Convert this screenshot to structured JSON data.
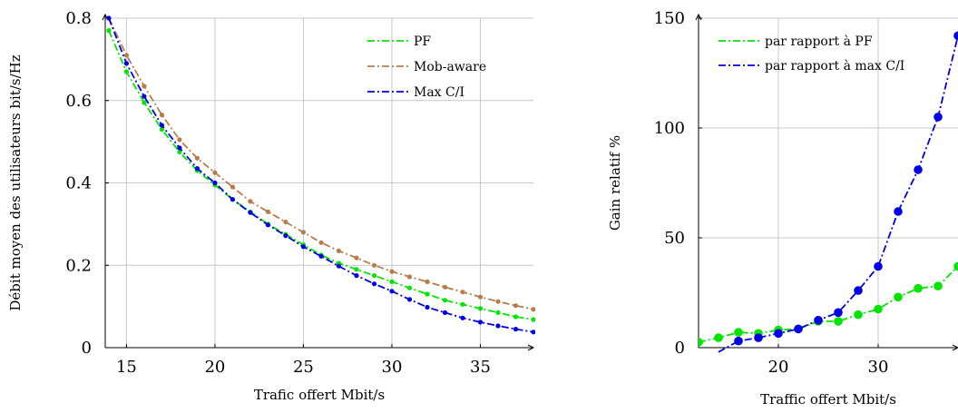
{
  "chart_data": [
    {
      "type": "line",
      "title": "",
      "xlabel": "Trafic offert Mbit/s",
      "ylabel": "Débit moyen des utilisateurs bit/s/Hz",
      "xlim": [
        13.8,
        38
      ],
      "ylim": [
        0,
        0.8
      ],
      "xticks": [
        15,
        20,
        25,
        30,
        35
      ],
      "xtick_labels": [
        "15",
        "20",
        "25",
        "30",
        "35"
      ],
      "yticks": [
        0,
        0.2,
        0.4,
        0.6,
        0.8
      ],
      "ytick_labels": [
        "0",
        "0.2",
        "0.4",
        "0.6",
        "0.8"
      ],
      "grid": true,
      "legend": "top-right",
      "series": [
        {
          "name": "PF",
          "color": "#00e600",
          "x": [
            14,
            15,
            16,
            17,
            18,
            19,
            20,
            21,
            22,
            23,
            24,
            25,
            26,
            27,
            28,
            29,
            30,
            31,
            32,
            33,
            34,
            35,
            36,
            37,
            38
          ],
          "values": [
            0.77,
            0.67,
            0.595,
            0.53,
            0.475,
            0.43,
            0.395,
            0.36,
            0.33,
            0.3,
            0.275,
            0.25,
            0.225,
            0.205,
            0.19,
            0.175,
            0.16,
            0.145,
            0.13,
            0.115,
            0.105,
            0.095,
            0.085,
            0.075,
            0.068
          ]
        },
        {
          "name": "Mob-aware",
          "color": "#b87c4c",
          "x": [
            14,
            15,
            16,
            17,
            18,
            19,
            20,
            21,
            22,
            23,
            24,
            25,
            26,
            27,
            28,
            29,
            30,
            31,
            32,
            33,
            34,
            35,
            36,
            37,
            38
          ],
          "values": [
            0.8,
            0.71,
            0.635,
            0.565,
            0.505,
            0.46,
            0.425,
            0.39,
            0.355,
            0.33,
            0.305,
            0.28,
            0.255,
            0.235,
            0.218,
            0.2,
            0.185,
            0.172,
            0.16,
            0.147,
            0.135,
            0.123,
            0.112,
            0.102,
            0.093
          ]
        },
        {
          "name": "Max C/I",
          "color": "#0000e6",
          "x": [
            14,
            15,
            16,
            17,
            18,
            19,
            20,
            21,
            22,
            23,
            24,
            25,
            26,
            27,
            28,
            29,
            30,
            31,
            32,
            33,
            34,
            35,
            36,
            37,
            38
          ],
          "values": [
            0.8,
            0.69,
            0.61,
            0.54,
            0.485,
            0.435,
            0.4,
            0.36,
            0.328,
            0.298,
            0.272,
            0.245,
            0.222,
            0.198,
            0.175,
            0.155,
            0.137,
            0.117,
            0.098,
            0.085,
            0.072,
            0.062,
            0.053,
            0.045,
            0.038
          ]
        }
      ]
    },
    {
      "type": "line",
      "title": "",
      "xlabel": "Traffic offert Mbit/s",
      "ylabel": "Gain relatif %",
      "xlim": [
        12,
        38
      ],
      "ylim": [
        0,
        150
      ],
      "xticks": [
        20,
        30
      ],
      "xtick_labels": [
        "20",
        "30"
      ],
      "yticks": [
        0,
        50,
        100,
        150
      ],
      "ytick_labels": [
        "0",
        "50",
        "100",
        "150"
      ],
      "grid": true,
      "legend": "top-left",
      "series": [
        {
          "name": "par rapport à PF",
          "color": "#00e600",
          "x": [
            12,
            14,
            16,
            18,
            20,
            22,
            24,
            26,
            28,
            30,
            32,
            34,
            36,
            38
          ],
          "values": [
            2.5,
            4.5,
            7,
            6.5,
            8,
            8.5,
            12,
            12,
            15,
            17.5,
            23,
            27,
            28,
            37
          ]
        },
        {
          "name": "par rapport à max C/I",
          "color": "#0000e6",
          "x": [
            14,
            16,
            18,
            20,
            22,
            24,
            26,
            28,
            30,
            32,
            34,
            36,
            38
          ],
          "values": [
            -2,
            3,
            4.5,
            6.5,
            8.5,
            12.5,
            16,
            26,
            37,
            62,
            81,
            105,
            142
          ]
        }
      ]
    }
  ]
}
